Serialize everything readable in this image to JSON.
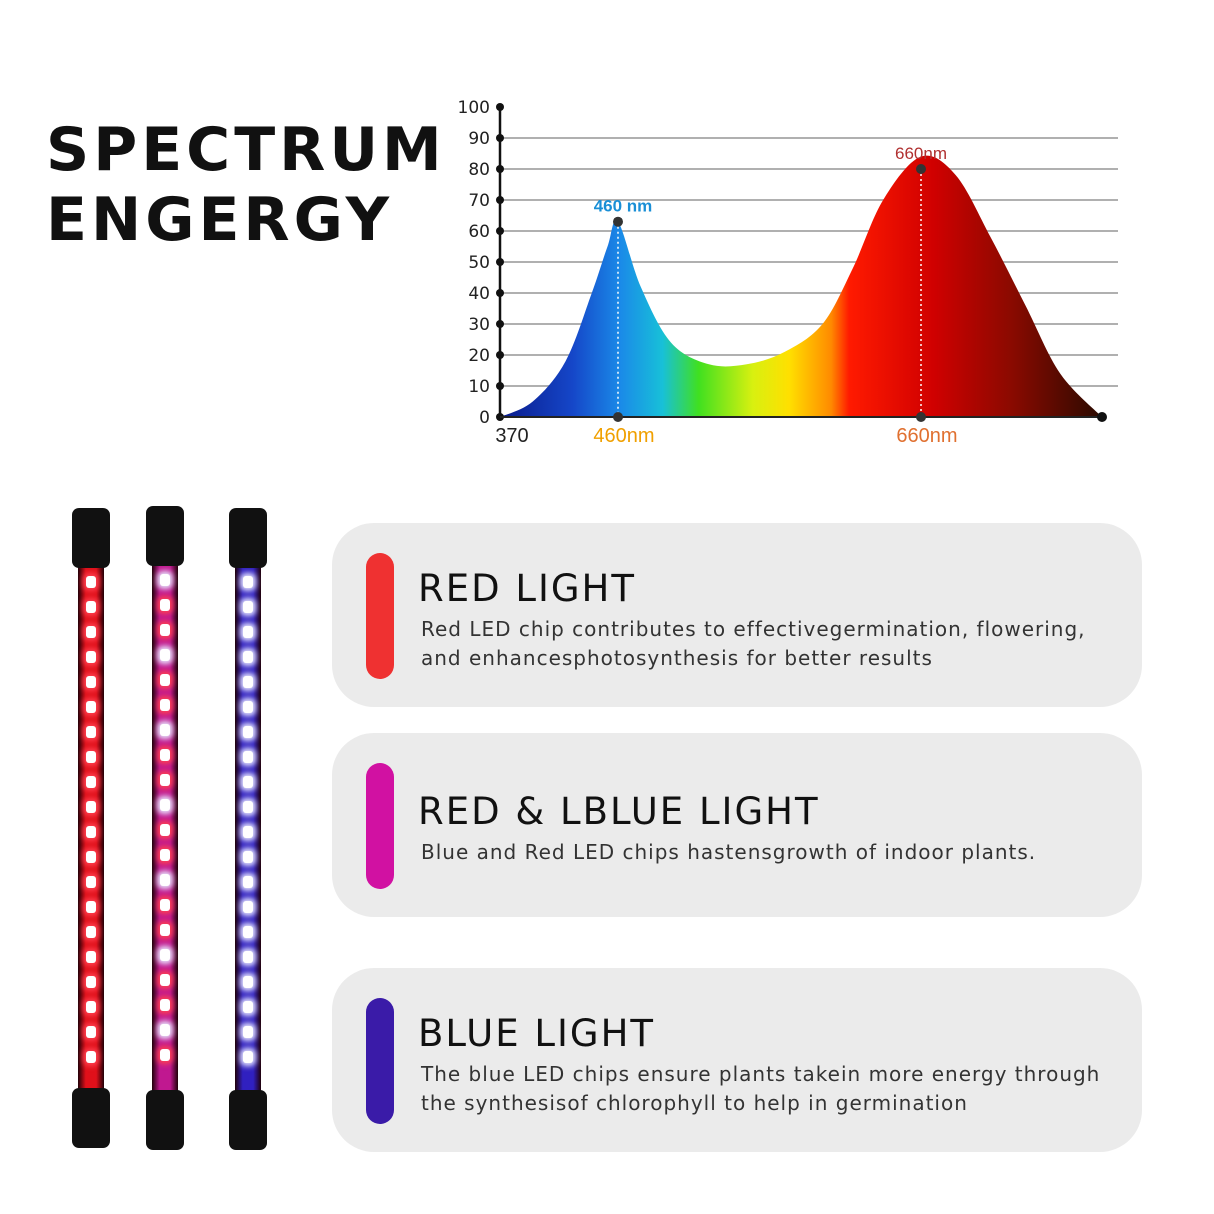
{
  "header": {
    "title_line1": "SPECTRUM",
    "title_line2": "ENGERGY"
  },
  "chart_data": {
    "type": "area",
    "xlabel": "",
    "ylabel": "",
    "y_ticks": [
      0,
      10,
      20,
      30,
      40,
      50,
      60,
      70,
      80,
      90,
      100
    ],
    "ylim": [
      0,
      100
    ],
    "x_tick_labels": [
      "370",
      "460nm",
      "660nm"
    ],
    "x_ticks": [
      370,
      460,
      660
    ],
    "grid": true,
    "annotations": [
      {
        "label": "460 nm",
        "x": 460,
        "y": 63,
        "color": "#1a8fd6"
      },
      {
        "label": "660nm",
        "x": 660,
        "y": 80,
        "color": "#b03030"
      }
    ],
    "series": [
      {
        "x": [
          370,
          395,
          420,
          440,
          452,
          460,
          475,
          495,
          520,
          545,
          570,
          595,
          615,
          635,
          660,
          685,
          710,
          735,
          760,
          790
        ],
        "y": [
          0,
          5,
          18,
          40,
          55,
          63,
          42,
          24,
          17,
          17,
          21,
          30,
          48,
          70,
          84,
          78,
          58,
          36,
          14,
          0
        ]
      }
    ],
    "fill": "spectrum-gradient"
  },
  "cards": [
    {
      "title": "RED LIGHT",
      "color": "#ef3131",
      "desc1": "Red LED chip contributes to effectivegermination, flowering,",
      "desc2": "and enhancesphotosynthesis for better results"
    },
    {
      "title": "RED & LBLUE LIGHT",
      "color": "#d111a2",
      "desc1": "Blue and Red LED chips hastensgrowth of indoor plants.",
      "desc2": ""
    },
    {
      "title": "BLUE LIGHT",
      "color": "#3a1ba8",
      "desc1": "The blue LED chips ensure plants takein more energy through",
      "desc2": "the synthesisof chlorophyll to help in germination"
    }
  ],
  "tubes": [
    {
      "name": "red",
      "glow": "#e0101a",
      "led_pattern": [
        "red"
      ]
    },
    {
      "name": "red-blue",
      "glow": "#c01890",
      "led_pattern": [
        "blue",
        "red",
        "red"
      ]
    },
    {
      "name": "blue",
      "glow": "#3020c0",
      "led_pattern": [
        "blue"
      ]
    }
  ]
}
